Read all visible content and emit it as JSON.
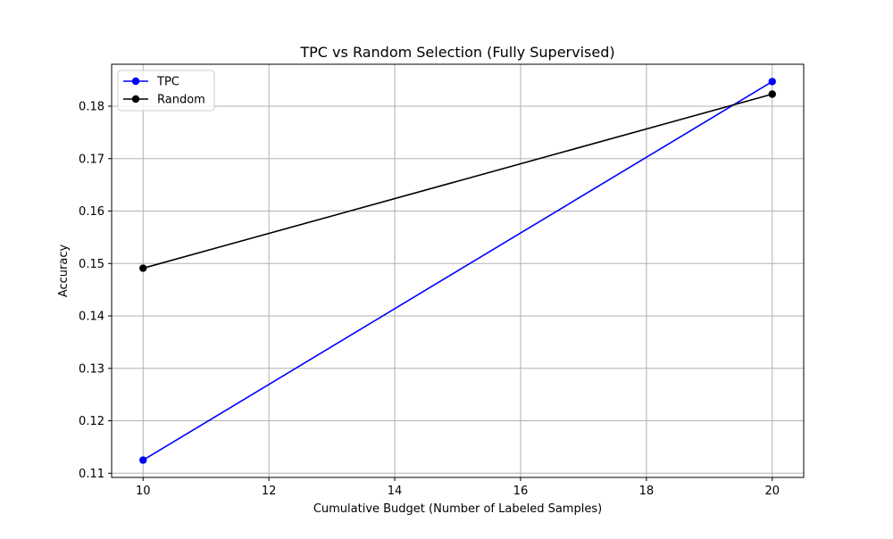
{
  "chart_data": {
    "type": "line",
    "title": "TPC vs Random Selection (Fully Supervised)",
    "xlabel": "Cumulative Budget (Number of Labeled Samples)",
    "ylabel": "Accuracy",
    "x": [
      10,
      20
    ],
    "xlim": [
      9.5,
      20.5
    ],
    "ylim": [
      0.1092,
      0.188
    ],
    "xticks": [
      10,
      12,
      14,
      16,
      18,
      20
    ],
    "yticks": [
      0.11,
      0.12,
      0.13,
      0.14,
      0.15,
      0.16,
      0.17,
      0.18
    ],
    "grid": true,
    "legend_position": "upper-left",
    "series": [
      {
        "name": "TPC",
        "color": "#0000ff",
        "marker": "circle",
        "values": [
          0.1125,
          0.1847
        ]
      },
      {
        "name": "Random",
        "color": "#000000",
        "marker": "circle",
        "values": [
          0.1491,
          0.1823
        ]
      }
    ]
  }
}
